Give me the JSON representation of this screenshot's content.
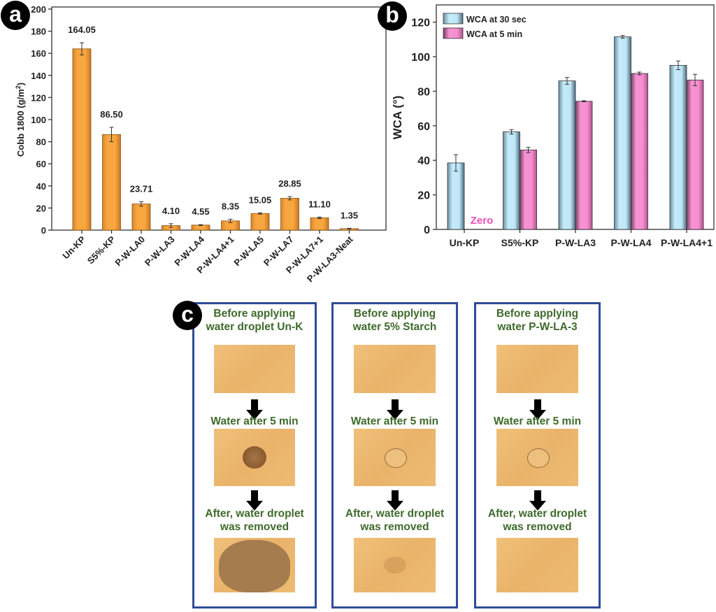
{
  "badges": {
    "a": "a",
    "b": "b",
    "c": "c"
  },
  "chart_data": [
    {
      "id": "a",
      "type": "bar",
      "title": "",
      "xlabel": "",
      "ylabel": "Cobb 1800 (g/m²)",
      "ylabel_main": "Cobb 1800 (g/m",
      "ylabel_sup": "2",
      "ylabel_end": ")",
      "ylim": [
        0,
        200
      ],
      "yticks": [
        0,
        20,
        40,
        60,
        80,
        100,
        120,
        140,
        160,
        180,
        200
      ],
      "categories": [
        "Un-KP",
        "S5%-KP",
        "P-W-LA0",
        "P-W-LA3",
        "P-W-LA4",
        "P-W-LA4+1",
        "P-W-LA5",
        "P-W-LA7",
        "P-W-LA7+1",
        "P-W-LA3-Neat"
      ],
      "values": [
        164.05,
        86.5,
        23.71,
        4.1,
        4.55,
        8.35,
        15.05,
        28.85,
        11.1,
        1.35
      ],
      "errors": [
        5.5,
        6.5,
        2.0,
        1.7,
        0.4,
        1.5,
        0.6,
        1.5,
        0.7,
        0.3
      ],
      "data_labels": [
        "164.05",
        "86.50",
        "23.71",
        "4.10",
        "4.55",
        "8.35",
        "15.05",
        "28.85",
        "11.10",
        "1.35"
      ],
      "bar_color": "#f5a03c",
      "grid": false,
      "legend": "none"
    },
    {
      "id": "b",
      "type": "bar",
      "title": "",
      "xlabel": "",
      "ylabel": "WCA (°)",
      "ylim": [
        0,
        130
      ],
      "yticks": [
        0,
        20,
        40,
        60,
        80,
        100,
        120
      ],
      "categories": [
        "Un-KP",
        "S5%-KP",
        "P-W-LA3",
        "P-W-LA4",
        "P-W-LA4+1"
      ],
      "series": [
        {
          "name": "WCA at 30 sec",
          "color": "#bfe6f7",
          "values": [
            38.5,
            56.5,
            86.0,
            111.5,
            95.0
          ],
          "errors": [
            4.8,
            1.3,
            2.0,
            0.8,
            2.5
          ]
        },
        {
          "name": "WCA at 5 min",
          "color": "#f58fcf",
          "values": [
            0,
            46.0,
            74.2,
            90.3,
            86.5
          ],
          "errors": [
            0,
            1.5,
            0.3,
            0.8,
            3.3
          ]
        }
      ],
      "annotations": [
        {
          "text": "Zero",
          "category": "Un-KP",
          "series": "WCA at 5 min",
          "color": "#ee4fb8"
        }
      ],
      "grid": false,
      "legend": "top-left"
    }
  ],
  "panel_c": {
    "columns": [
      {
        "before_line1": "Before applying",
        "before_line2": "water droplet Un-K",
        "after5_label": "Water after 5 min",
        "removed_line1": "After, water droplet",
        "removed_line2": "was removed"
      },
      {
        "before_line1": "Before applying",
        "before_line2": "water  5% Starch",
        "after5_label": "Water after 5 min",
        "removed_line1": "After, water droplet",
        "removed_line2": "was removed"
      },
      {
        "before_line1": "Before applying",
        "before_line2": "water P-W-LA-3",
        "after5_label": "Water after 5 min",
        "removed_line1": "After, water droplet",
        "removed_line2": "was removed"
      }
    ]
  }
}
